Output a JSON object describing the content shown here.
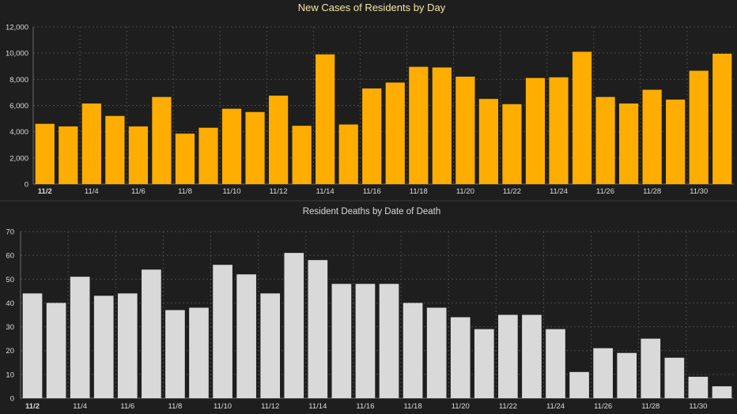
{
  "chart_data": [
    {
      "type": "bar",
      "title": "New Cases of Residents by Day",
      "xlabel": "",
      "ylabel": "",
      "color": "#ffad00",
      "ylim": [
        0,
        12000
      ],
      "yticks": [
        "0",
        "2,000",
        "4,000",
        "6,000",
        "8,000",
        "10,000",
        "12,000"
      ],
      "ytick_values": [
        0,
        2000,
        4000,
        6000,
        8000,
        10000,
        12000
      ],
      "xtick_labels": [
        "11/2",
        "11/4",
        "11/6",
        "11/8",
        "11/10",
        "11/12",
        "11/14",
        "11/16",
        "11/18",
        "11/20",
        "11/22",
        "11/24",
        "11/26",
        "11/28",
        "11/30"
      ],
      "categories": [
        "11/2",
        "11/3",
        "11/4",
        "11/5",
        "11/6",
        "11/7",
        "11/8",
        "11/9",
        "11/10",
        "11/11",
        "11/12",
        "11/13",
        "11/14",
        "11/15",
        "11/16",
        "11/17",
        "11/18",
        "11/19",
        "11/20",
        "11/21",
        "11/22",
        "11/23",
        "11/24",
        "11/25",
        "11/26",
        "11/27",
        "11/28",
        "11/29",
        "11/30",
        "12/1"
      ],
      "values": [
        4600,
        4400,
        6150,
        5200,
        4400,
        6650,
        3850,
        4300,
        5750,
        5500,
        6750,
        4450,
        9900,
        4550,
        7300,
        7750,
        8950,
        8900,
        8200,
        6500,
        6100,
        8100,
        8150,
        10100,
        6650,
        6150,
        7200,
        6450,
        8650,
        9950
      ],
      "grid": true
    },
    {
      "type": "bar",
      "title": "Resident Deaths by Date of Death",
      "xlabel": "",
      "ylabel": "",
      "color": "#d9d9d9",
      "ylim": [
        0,
        70
      ],
      "yticks": [
        "0",
        "10",
        "20",
        "30",
        "40",
        "50",
        "60",
        "70"
      ],
      "ytick_values": [
        0,
        10,
        20,
        30,
        40,
        50,
        60,
        70
      ],
      "xtick_labels": [
        "11/2",
        "11/4",
        "11/6",
        "11/8",
        "11/10",
        "11/12",
        "11/14",
        "11/16",
        "11/18",
        "11/20",
        "11/22",
        "11/24",
        "11/26",
        "11/28",
        "11/30"
      ],
      "categories": [
        "11/2",
        "11/3",
        "11/4",
        "11/5",
        "11/6",
        "11/7",
        "11/8",
        "11/9",
        "11/10",
        "11/11",
        "11/12",
        "11/13",
        "11/14",
        "11/15",
        "11/16",
        "11/17",
        "11/18",
        "11/19",
        "11/20",
        "11/21",
        "11/22",
        "11/23",
        "11/24",
        "11/25",
        "11/26",
        "11/27",
        "11/28",
        "11/29",
        "11/30",
        "12/1"
      ],
      "values": [
        44,
        40,
        51,
        43,
        44,
        54,
        37,
        38,
        56,
        52,
        44,
        61,
        58,
        48,
        48,
        48,
        40,
        38,
        34,
        29,
        35,
        35,
        29,
        11,
        21,
        19,
        25,
        17,
        9,
        5
      ],
      "grid": true
    }
  ]
}
